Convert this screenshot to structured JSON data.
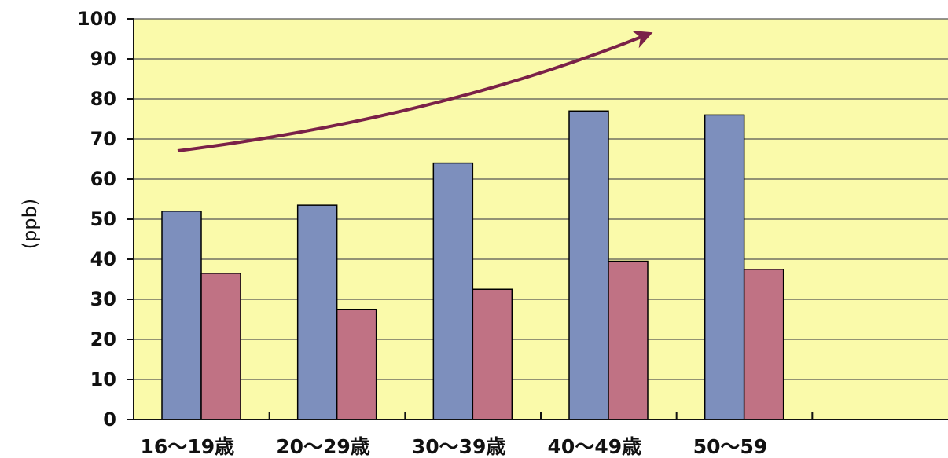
{
  "chart_data": {
    "type": "bar",
    "title": "",
    "xlabel": "",
    "ylabel": "(ppb)",
    "ylim": [
      0,
      100
    ],
    "yticks": [
      0,
      10,
      20,
      30,
      40,
      50,
      60,
      70,
      80,
      90,
      100
    ],
    "grid": true,
    "categories": [
      "16～19歳",
      "20～29歳",
      "30～39歳",
      "40～49歳",
      "50～59",
      ""
    ],
    "series": [
      {
        "color": "#7d8fbd",
        "values": [
          52,
          53.5,
          64,
          77,
          76,
          null
        ]
      },
      {
        "color": "#c07284",
        "values": [
          36.5,
          27.5,
          32.5,
          39.5,
          37.5,
          null
        ]
      }
    ],
    "plot_background": "#fafaaa",
    "gridline_color": "#555555",
    "annotation": {
      "type": "arrow",
      "meaning": "increasing trend",
      "color": "#7a2148"
    }
  }
}
